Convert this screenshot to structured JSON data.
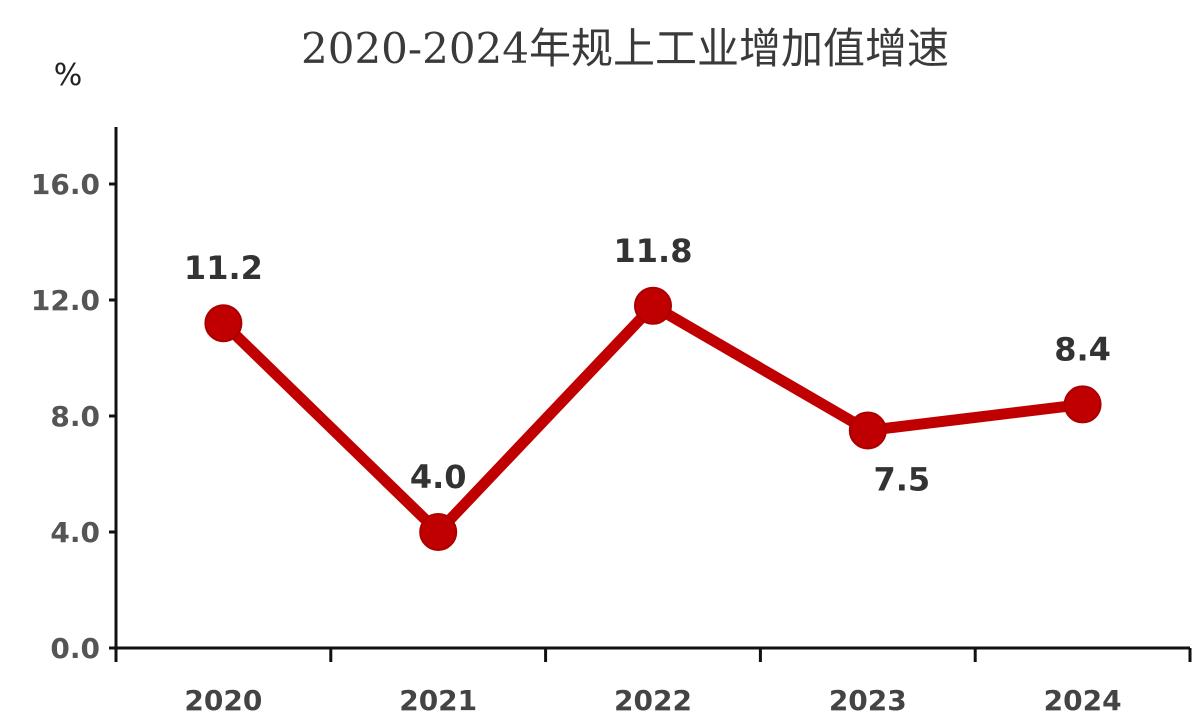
{
  "chart_data": {
    "type": "line",
    "title": "2020-2024年规上工业增加值增速",
    "ylabel": "%",
    "xlabel": "",
    "categories": [
      "2020",
      "2021",
      "2022",
      "2023",
      "2024"
    ],
    "series": [
      {
        "values": [
          11.2,
          4.0,
          11.8,
          7.5,
          8.4
        ],
        "color": "#c00000"
      }
    ],
    "data_labels": [
      "11.2",
      "4.0",
      "11.8",
      "7.5",
      "8.4"
    ],
    "data_label_positions": [
      "above",
      "above",
      "above",
      "below",
      "above"
    ],
    "ylim": [
      0,
      18
    ],
    "yticks": [
      0,
      4,
      8,
      12,
      16
    ],
    "ytick_labels": [
      "0.0",
      "4.0",
      "8.0",
      "12.0",
      "16.0"
    ],
    "grid": false,
    "legend": "none"
  }
}
